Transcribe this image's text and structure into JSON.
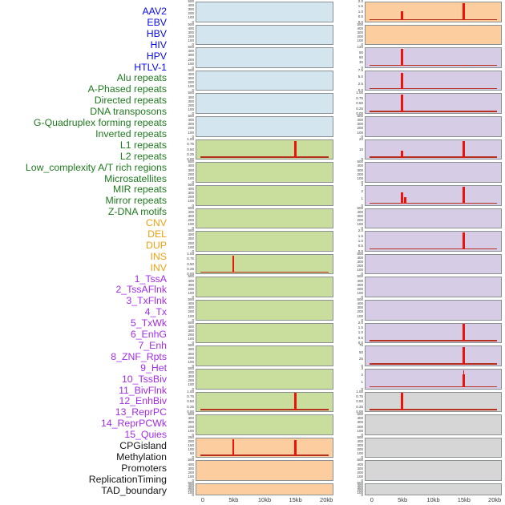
{
  "colors": {
    "label": {
      "virus": "#0808f2",
      "repeat": "#1f7a1f",
      "sv": "#efa112",
      "chromatin": "#a42ce8",
      "other": "#161616"
    },
    "panel": {
      "virus": "#d3e6f0",
      "repeat": "#c9de9d",
      "sv": "#fcce9f",
      "chromatin": "#d6cce5",
      "other": "#d6d6d6"
    },
    "spike": "#ed1309",
    "baseline": "#b5301f",
    "panel_border": "#8b9093",
    "tick_text": "#3d3d3d",
    "axis_text": "#3a3a3a"
  },
  "chart_data": {
    "type": "bar",
    "title": "",
    "xlabel": "",
    "ylabel": "",
    "x_axis": {
      "tick_labels": [
        "0",
        "5kb",
        "10kb",
        "15kb",
        "20kb"
      ],
      "tick_kb": [
        0,
        5,
        10,
        15,
        20
      ],
      "range_kb": [
        0,
        20
      ]
    },
    "layout": {
      "columns": 2,
      "rows_per_column": 22,
      "order": "column-major",
      "grid": false,
      "legend": false
    },
    "spike_positions_kb": [
      5,
      15
    ],
    "features": [
      {
        "label": "AAV2",
        "group": "virus",
        "yticks": [
          "500",
          "400",
          "300",
          "200",
          "100",
          "0"
        ],
        "spikes": [],
        "baseline": false
      },
      {
        "label": "EBV",
        "group": "virus",
        "yticks": [
          "500",
          "400",
          "300",
          "200",
          "100",
          "0"
        ],
        "spikes": [],
        "baseline": false
      },
      {
        "label": "HBV",
        "group": "virus",
        "yticks": [
          "500",
          "400",
          "300",
          "200",
          "100",
          "0"
        ],
        "spikes": [],
        "baseline": false
      },
      {
        "label": "HIV",
        "group": "virus",
        "yticks": [
          "500",
          "400",
          "300",
          "200",
          "100",
          "0"
        ],
        "spikes": [],
        "baseline": false
      },
      {
        "label": "HPV",
        "group": "virus",
        "yticks": [
          "500",
          "400",
          "300",
          "200",
          "100",
          "0"
        ],
        "spikes": [],
        "baseline": false
      },
      {
        "label": "HTLV-1",
        "group": "virus",
        "yticks": [
          "500",
          "400",
          "300",
          "200",
          "100",
          "0"
        ],
        "spikes": [],
        "baseline": false
      },
      {
        "label": "Alu repeats",
        "group": "repeat",
        "yticks": [
          "1.00",
          "0.75",
          "0.50",
          "0.25",
          "0.00"
        ],
        "spikes": [
          {
            "kb": 15,
            "h": 1.0
          }
        ],
        "baseline": true
      },
      {
        "label": "A-Phased repeats",
        "group": "repeat",
        "yticks": [
          "500",
          "400",
          "300",
          "200",
          "100",
          "0"
        ],
        "spikes": [],
        "baseline": false
      },
      {
        "label": "Directed repeats",
        "group": "repeat",
        "yticks": [
          "500",
          "400",
          "300",
          "200",
          "100",
          "0"
        ],
        "spikes": [],
        "baseline": false
      },
      {
        "label": "DNA transposons",
        "group": "repeat",
        "yticks": [
          "500",
          "400",
          "300",
          "200",
          "100",
          "0"
        ],
        "spikes": [],
        "baseline": false
      },
      {
        "label": "G-Quadruplex forming repeats",
        "group": "repeat",
        "yticks": [
          "500",
          "400",
          "300",
          "200",
          "100",
          "0"
        ],
        "spikes": [],
        "baseline": false
      },
      {
        "label": "Inverted repeats",
        "group": "repeat",
        "yticks": [
          "1.00",
          "0.75",
          "0.50",
          "0.25",
          "0.00"
        ],
        "spikes": [
          {
            "kb": 5,
            "h": 1.0
          }
        ],
        "baseline": true
      },
      {
        "label": "L1 repeats",
        "group": "repeat",
        "yticks": [
          "500",
          "400",
          "300",
          "200",
          "100",
          "0"
        ],
        "spikes": [],
        "baseline": false
      },
      {
        "label": "L2 repeats",
        "group": "repeat",
        "yticks": [
          "500",
          "400",
          "300",
          "200",
          "100",
          "0"
        ],
        "spikes": [],
        "baseline": false
      },
      {
        "label": "Low_complexity A/T rich regions",
        "group": "repeat",
        "yticks": [
          "500",
          "400",
          "300",
          "200",
          "100",
          "0"
        ],
        "spikes": [],
        "baseline": false
      },
      {
        "label": "Microsatellites",
        "group": "repeat",
        "yticks": [
          "500",
          "400",
          "300",
          "200",
          "100",
          "0"
        ],
        "spikes": [],
        "baseline": false
      },
      {
        "label": "MIR repeats",
        "group": "repeat",
        "yticks": [
          "500",
          "400",
          "300",
          "200",
          "100",
          "0"
        ],
        "spikes": [],
        "baseline": false
      },
      {
        "label": "Mirror repeats",
        "group": "repeat",
        "yticks": [
          "1.00",
          "0.75",
          "0.50",
          "0.25",
          "0.00"
        ],
        "spikes": [
          {
            "kb": 15,
            "h": 1.0
          }
        ],
        "baseline": true
      },
      {
        "label": "Z-DNA motifs",
        "group": "repeat",
        "yticks": [
          "500",
          "400",
          "300",
          "200",
          "100",
          "0"
        ],
        "spikes": [],
        "baseline": false
      },
      {
        "label": "CNV",
        "group": "sv",
        "yticks": [
          "250",
          "200",
          "150",
          "100",
          "50",
          "0"
        ],
        "spikes": [
          {
            "kb": 5,
            "h": 1.0
          },
          {
            "kb": 15,
            "h": 0.92
          }
        ],
        "baseline": true
      },
      {
        "label": "DEL",
        "group": "sv",
        "yticks": [
          "500",
          "400",
          "300",
          "200",
          "100",
          "0"
        ],
        "spikes": [],
        "baseline": false
      },
      {
        "label": "DUP",
        "group": "sv",
        "yticks": [
          "500",
          "400",
          "300",
          "200",
          "100",
          "0"
        ],
        "spikes": [],
        "baseline": false
      },
      {
        "label": "INS",
        "group": "sv",
        "yticks": [
          "2.0",
          "1.5",
          "1.0",
          "0.5",
          "0.0"
        ],
        "spikes": [
          {
            "kb": 5,
            "h": 0.52
          },
          {
            "kb": 15,
            "h": 1.0
          }
        ],
        "baseline": true
      },
      {
        "label": "INV",
        "group": "sv",
        "yticks": [
          "500",
          "400",
          "300",
          "200",
          "100",
          "0"
        ],
        "spikes": [],
        "baseline": false
      },
      {
        "label": "1_TssA",
        "group": "chromatin",
        "yticks": [
          "120",
          "90",
          "60",
          "30",
          "0"
        ],
        "spikes": [
          {
            "kb": 5,
            "h": 1.0
          },
          {
            "kb": 15,
            "h": 0.07
          }
        ],
        "baseline": true
      },
      {
        "label": "2_TssAFlnk",
        "group": "chromatin",
        "yticks": [
          "7.5",
          "5.0",
          "2.5",
          "0.0"
        ],
        "spikes": [
          {
            "kb": 5,
            "h": 0.96
          }
        ],
        "baseline": true
      },
      {
        "label": "3_TxFlnk",
        "group": "chromatin",
        "yticks": [
          "1.00",
          "0.75",
          "0.50",
          "0.25",
          "0.00"
        ],
        "spikes": [
          {
            "kb": 5,
            "h": 1.0
          }
        ],
        "baseline": true
      },
      {
        "label": "4_Tx",
        "group": "chromatin",
        "yticks": [
          "500",
          "400",
          "300",
          "200",
          "100",
          "0"
        ],
        "spikes": [],
        "baseline": false
      },
      {
        "label": "5_TxWk",
        "group": "chromatin",
        "yticks": [
          "20",
          "10",
          "0"
        ],
        "spikes": [
          {
            "kb": 5,
            "h": 0.42
          },
          {
            "kb": 15,
            "h": 1.0
          }
        ],
        "baseline": true
      },
      {
        "label": "6_EnhG",
        "group": "chromatin",
        "yticks": [
          "500",
          "400",
          "300",
          "200",
          "100",
          "0"
        ],
        "spikes": [],
        "baseline": false
      },
      {
        "label": "7_Enh",
        "group": "chromatin",
        "yticks": [
          "3",
          "2",
          "1",
          "0"
        ],
        "spikes": [
          {
            "kb": 5,
            "h": 0.68
          },
          {
            "kb": 5.5,
            "h": 0.36
          },
          {
            "kb": 15,
            "h": 1.0
          }
        ],
        "baseline": true
      },
      {
        "label": "8_ZNF_Rpts",
        "group": "chromatin",
        "yticks": [
          "500",
          "400",
          "300",
          "200",
          "100",
          "0"
        ],
        "spikes": [],
        "baseline": false
      },
      {
        "label": "9_Het",
        "group": "chromatin",
        "yticks": [
          "2.0",
          "1.5",
          "1.0",
          "0.5",
          "0.0"
        ],
        "spikes": [
          {
            "kb": 15,
            "h": 1.0
          }
        ],
        "baseline": true
      },
      {
        "label": "10_TssBiv",
        "group": "chromatin",
        "yticks": [
          "500",
          "400",
          "300",
          "200",
          "100",
          "0"
        ],
        "spikes": [],
        "baseline": false
      },
      {
        "label": "11_BivFlnk",
        "group": "chromatin",
        "yticks": [
          "500",
          "400",
          "300",
          "200",
          "100",
          "0"
        ],
        "spikes": [],
        "baseline": false
      },
      {
        "label": "12_EnhBiv",
        "group": "chromatin",
        "yticks": [
          "500",
          "400",
          "300",
          "200",
          "100",
          "0"
        ],
        "spikes": [],
        "baseline": false
      },
      {
        "label": "13_ReprPC",
        "group": "chromatin",
        "yticks": [
          "2.0",
          "1.5",
          "1.0",
          "0.5",
          "0.0"
        ],
        "spikes": [
          {
            "kb": 15,
            "h": 1.0
          }
        ],
        "baseline": true
      },
      {
        "label": "14_ReprPCWk",
        "group": "chromatin",
        "yticks": [
          "75",
          "50",
          "25",
          "0"
        ],
        "spikes": [
          {
            "kb": 15,
            "h": 1.0
          }
        ],
        "baseline": true
      },
      {
        "label": "15_Quies",
        "group": "chromatin",
        "yticks": [
          "3",
          "2",
          "1",
          "0"
        ],
        "spikes": [
          {
            "kb": 15,
            "h": 0.76
          },
          {
            "kb": 15,
            "h": 1.0,
            "w": 1.2
          }
        ],
        "baseline": true
      },
      {
        "label": "CPGisland",
        "group": "other",
        "yticks": [
          "1.00",
          "0.75",
          "0.50",
          "0.25",
          "0.00"
        ],
        "spikes": [
          {
            "kb": 5,
            "h": 1.0
          }
        ],
        "baseline": true
      },
      {
        "label": "Methylation",
        "group": "other",
        "yticks": [
          "500",
          "400",
          "300",
          "200",
          "100",
          "0"
        ],
        "spikes": [],
        "baseline": false
      },
      {
        "label": "Promoters",
        "group": "other",
        "yticks": [
          "500",
          "400",
          "300",
          "200",
          "100",
          "0"
        ],
        "spikes": [],
        "baseline": false
      },
      {
        "label": "ReplicationTiming",
        "group": "other",
        "yticks": [
          "500",
          "400",
          "300",
          "200",
          "100",
          "0"
        ],
        "spikes": [],
        "baseline": false
      },
      {
        "label": "TAD_boundary",
        "group": "other",
        "yticks": [
          "500",
          "400",
          "300",
          "200",
          "100",
          "0"
        ],
        "spikes": [],
        "baseline": false
      }
    ]
  }
}
